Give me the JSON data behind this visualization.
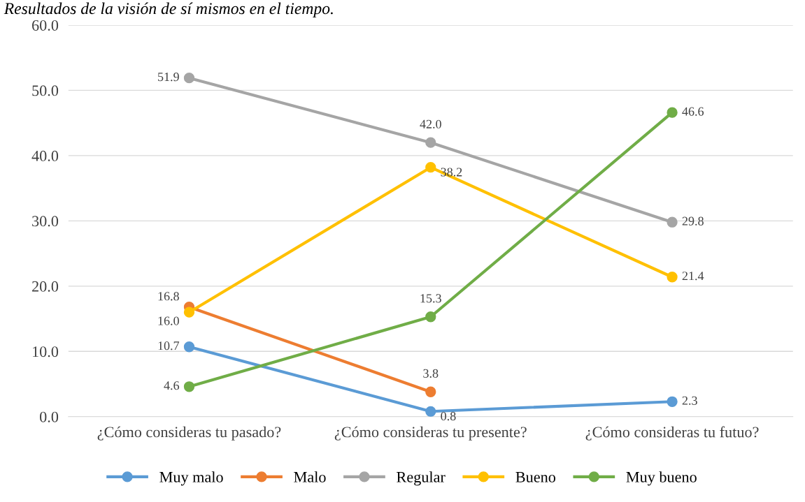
{
  "chart_data": {
    "type": "line",
    "title": "Resultados de la visión de sí mismos en el tiempo.",
    "categories": [
      "¿Cómo consideras tu pasado?",
      "¿Cómo consideras tu presente?",
      "¿Cómo consideras tu futuo?"
    ],
    "series": [
      {
        "name": "Muy malo",
        "color": "#5b9bd5",
        "values": [
          10.7,
          0.8,
          2.3
        ],
        "value_labels": [
          "10.7",
          "0.8",
          "2.3"
        ]
      },
      {
        "name": "Malo",
        "color": "#ed7d31",
        "values": [
          16.8,
          3.8,
          null
        ],
        "value_labels": [
          "16.8",
          "3.8",
          null
        ]
      },
      {
        "name": "Regular",
        "color": "#a5a5a5",
        "values": [
          51.9,
          42.0,
          29.8
        ],
        "value_labels": [
          "51.9",
          "42.0",
          "29.8"
        ]
      },
      {
        "name": "Bueno",
        "color": "#ffc000",
        "values": [
          16.0,
          38.2,
          21.4
        ],
        "value_labels": [
          "16.0",
          "38.2",
          "21.4"
        ]
      },
      {
        "name": "Muy bueno",
        "color": "#70ad47",
        "values": [
          4.6,
          15.3,
          46.6
        ],
        "value_labels": [
          "4.6",
          "15.3",
          "46.6"
        ]
      }
    ],
    "ylim": [
      0,
      60
    ],
    "yticks": [
      {
        "value": 0,
        "label": "0.0"
      },
      {
        "value": 10,
        "label": "10.0"
      },
      {
        "value": 20,
        "label": "20.0"
      },
      {
        "value": 30,
        "label": "30.0"
      },
      {
        "value": 40,
        "label": "40.0"
      },
      {
        "value": 50,
        "label": "50.0"
      },
      {
        "value": 60,
        "label": "60.0"
      }
    ],
    "grid": "y",
    "legend": "bottom",
    "marker": "circle",
    "line_style": "solid"
  }
}
